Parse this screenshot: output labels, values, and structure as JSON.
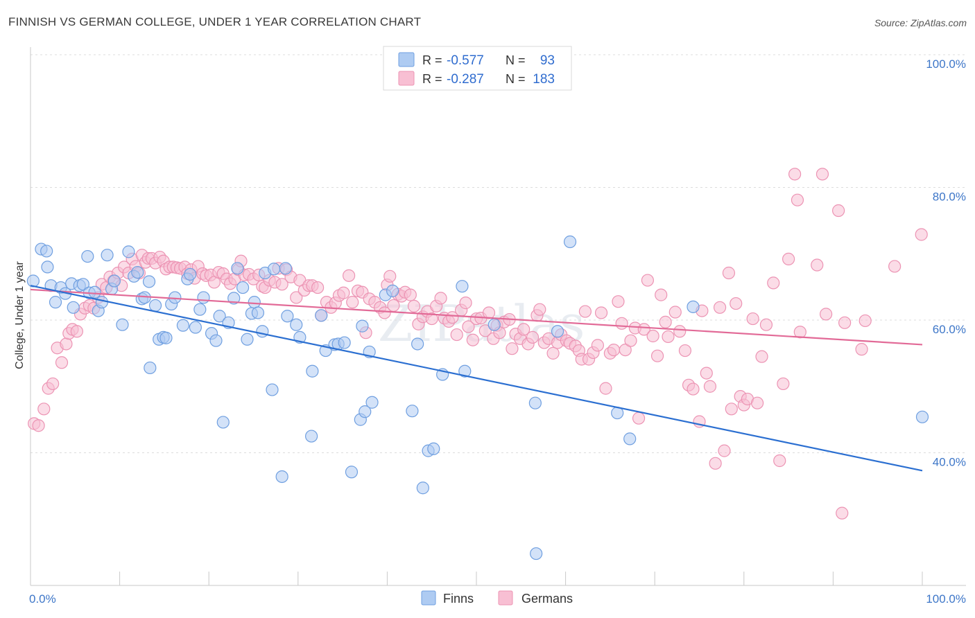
{
  "header": {
    "title": "FINNISH VS GERMAN COLLEGE, UNDER 1 YEAR CORRELATION CHART",
    "source": "Source: ZipAtlas.com"
  },
  "legend": {
    "finns": {
      "r_label": "R =",
      "r_value": "-0.577",
      "n_label": "N =",
      "n_value": "93"
    },
    "germans": {
      "r_label": "R =",
      "r_value": "-0.287",
      "n_label": "N =",
      "n_value": "183"
    }
  },
  "bottom_legend": {
    "finns": "Finns",
    "germans": "Germans"
  },
  "watermark": "ZIPatlas",
  "colors": {
    "finns_fill": "#aecbf2",
    "finns_stroke": "#6f9fe0",
    "finns_line": "#2b6fd1",
    "germans_fill": "#f8bfd3",
    "germans_stroke": "#ec93b3",
    "germans_line": "#e26a97",
    "grid": "#dcdcdc",
    "axis_label": "#3d76c8"
  },
  "chart_data": {
    "type": "scatter",
    "title": "FINNISH VS GERMAN COLLEGE, UNDER 1 YEAR CORRELATION CHART",
    "xlabel": "",
    "ylabel": "College, Under 1 year",
    "xlim": [
      0,
      100
    ],
    "ylim": [
      20,
      100
    ],
    "x_tick_labels": [
      "0.0%",
      "100.0%"
    ],
    "y_ticks": [
      40,
      60,
      80,
      100
    ],
    "y_tick_labels": [
      "40.0%",
      "60.0%",
      "80.0%",
      "100.0%"
    ],
    "grid": true,
    "legend_position": "top-center",
    "series": [
      {
        "name": "Finns",
        "r": -0.577,
        "n": 93,
        "trend": {
          "x": [
            0,
            100
          ],
          "y": [
            65.2,
            37.3
          ]
        },
        "points": [
          [
            0.3,
            65.9
          ],
          [
            1.2,
            70.7
          ],
          [
            1.8,
            70.4
          ],
          [
            1.9,
            68.0
          ],
          [
            2.3,
            65.2
          ],
          [
            2.8,
            62.7
          ],
          [
            3.4,
            64.9
          ],
          [
            3.9,
            64.0
          ],
          [
            4.6,
            65.5
          ],
          [
            4.8,
            61.9
          ],
          [
            5.5,
            65.2
          ],
          [
            5.9,
            65.4
          ],
          [
            6.4,
            69.6
          ],
          [
            6.6,
            64.1
          ],
          [
            7.2,
            64.2
          ],
          [
            7.6,
            61.4
          ],
          [
            8.0,
            62.7
          ],
          [
            8.6,
            69.8
          ],
          [
            9.1,
            64.7
          ],
          [
            9.4,
            65.9
          ],
          [
            10.3,
            59.3
          ],
          [
            11.0,
            70.3
          ],
          [
            11.6,
            66.6
          ],
          [
            12.0,
            67.2
          ],
          [
            12.5,
            63.2
          ],
          [
            12.8,
            63.4
          ],
          [
            13.3,
            65.8
          ],
          [
            13.4,
            52.8
          ],
          [
            14.0,
            62.2
          ],
          [
            14.4,
            57.1
          ],
          [
            14.9,
            57.4
          ],
          [
            15.2,
            57.3
          ],
          [
            15.8,
            62.4
          ],
          [
            16.2,
            63.4
          ],
          [
            17.1,
            59.2
          ],
          [
            17.6,
            66.2
          ],
          [
            17.9,
            66.9
          ],
          [
            18.5,
            58.9
          ],
          [
            19.0,
            61.6
          ],
          [
            19.4,
            63.4
          ],
          [
            20.3,
            58.0
          ],
          [
            20.8,
            56.9
          ],
          [
            21.2,
            60.6
          ],
          [
            21.6,
            44.6
          ],
          [
            22.2,
            59.6
          ],
          [
            22.8,
            63.3
          ],
          [
            23.2,
            67.8
          ],
          [
            23.8,
            64.9
          ],
          [
            24.3,
            57.1
          ],
          [
            24.8,
            61.0
          ],
          [
            25.1,
            62.7
          ],
          [
            25.5,
            61.1
          ],
          [
            26.0,
            58.3
          ],
          [
            26.3,
            67.1
          ],
          [
            27.1,
            49.5
          ],
          [
            27.3,
            67.7
          ],
          [
            28.2,
            36.4
          ],
          [
            28.6,
            67.8
          ],
          [
            28.8,
            60.6
          ],
          [
            29.8,
            59.3
          ],
          [
            30.2,
            57.4
          ],
          [
            31.5,
            42.5
          ],
          [
            31.6,
            52.3
          ],
          [
            32.6,
            60.7
          ],
          [
            33.1,
            55.4
          ],
          [
            34.1,
            56.3
          ],
          [
            34.5,
            56.4
          ],
          [
            35.2,
            56.6
          ],
          [
            36.0,
            37.1
          ],
          [
            37.0,
            45.0
          ],
          [
            37.2,
            59.1
          ],
          [
            37.5,
            46.2
          ],
          [
            38.0,
            55.2
          ],
          [
            38.3,
            47.6
          ],
          [
            39.8,
            63.8
          ],
          [
            40.6,
            64.4
          ],
          [
            42.8,
            46.3
          ],
          [
            43.4,
            56.4
          ],
          [
            44.0,
            34.7
          ],
          [
            44.6,
            40.3
          ],
          [
            45.2,
            40.6
          ],
          [
            46.2,
            51.8
          ],
          [
            48.4,
            65.1
          ],
          [
            48.7,
            52.3
          ],
          [
            52.0,
            59.3
          ],
          [
            56.6,
            47.5
          ],
          [
            56.7,
            24.8
          ],
          [
            59.1,
            58.3
          ],
          [
            60.5,
            71.8
          ],
          [
            65.8,
            46.0
          ],
          [
            67.2,
            42.1
          ],
          [
            74.3,
            62.0
          ],
          [
            100.0,
            45.4
          ]
        ]
      },
      {
        "name": "Germans",
        "r": -0.287,
        "n": 183,
        "trend": {
          "x": [
            0,
            100
          ],
          "y": [
            64.6,
            56.3
          ]
        },
        "points": [
          [
            0.4,
            44.4
          ],
          [
            0.9,
            44.1
          ],
          [
            1.5,
            46.6
          ],
          [
            2.0,
            49.7
          ],
          [
            2.5,
            50.4
          ],
          [
            3.0,
            55.8
          ],
          [
            3.5,
            53.6
          ],
          [
            4.0,
            56.4
          ],
          [
            4.3,
            58.0
          ],
          [
            4.7,
            58.6
          ],
          [
            5.2,
            58.3
          ],
          [
            5.6,
            60.9
          ],
          [
            6.1,
            61.8
          ],
          [
            6.6,
            62.2
          ],
          [
            7.1,
            61.8
          ],
          [
            7.6,
            63.4
          ],
          [
            8.0,
            65.4
          ],
          [
            8.5,
            64.9
          ],
          [
            8.9,
            66.5
          ],
          [
            9.3,
            65.9
          ],
          [
            9.8,
            67.1
          ],
          [
            10.2,
            65.2
          ],
          [
            10.5,
            68.0
          ],
          [
            11.0,
            67.1
          ],
          [
            11.4,
            69.2
          ],
          [
            11.8,
            68.1
          ],
          [
            12.2,
            67.1
          ],
          [
            12.5,
            69.8
          ],
          [
            12.9,
            68.7
          ],
          [
            13.2,
            69.3
          ],
          [
            13.6,
            69.3
          ],
          [
            14.0,
            68.6
          ],
          [
            14.5,
            69.5
          ],
          [
            14.9,
            68.9
          ],
          [
            15.2,
            67.7
          ],
          [
            15.6,
            68.0
          ],
          [
            16.0,
            68.0
          ],
          [
            16.4,
            67.9
          ],
          [
            16.8,
            67.8
          ],
          [
            17.3,
            68.0
          ],
          [
            17.6,
            67.0
          ],
          [
            18.0,
            67.6
          ],
          [
            18.4,
            66.3
          ],
          [
            18.8,
            68.1
          ],
          [
            19.3,
            67.0
          ],
          [
            19.7,
            66.7
          ],
          [
            20.2,
            66.8
          ],
          [
            20.6,
            65.7
          ],
          [
            21.1,
            67.2
          ],
          [
            21.6,
            67.0
          ],
          [
            22.0,
            66.2
          ],
          [
            22.4,
            65.5
          ],
          [
            22.9,
            66.2
          ],
          [
            23.3,
            67.6
          ],
          [
            23.6,
            68.9
          ],
          [
            24.0,
            66.8
          ],
          [
            24.5,
            66.9
          ],
          [
            25.0,
            66.2
          ],
          [
            25.6,
            66.8
          ],
          [
            26.0,
            65.1
          ],
          [
            26.3,
            64.9
          ],
          [
            26.8,
            66.0
          ],
          [
            27.4,
            65.7
          ],
          [
            27.8,
            67.8
          ],
          [
            28.2,
            65.4
          ],
          [
            28.7,
            67.6
          ],
          [
            29.2,
            66.5
          ],
          [
            29.8,
            63.4
          ],
          [
            30.2,
            66.0
          ],
          [
            30.7,
            64.5
          ],
          [
            31.2,
            65.2
          ],
          [
            31.6,
            65.2
          ],
          [
            32.2,
            64.9
          ],
          [
            32.6,
            60.7
          ],
          [
            33.2,
            62.7
          ],
          [
            33.7,
            61.9
          ],
          [
            34.2,
            62.6
          ],
          [
            34.6,
            63.7
          ],
          [
            35.1,
            64.1
          ],
          [
            35.7,
            66.7
          ],
          [
            36.1,
            62.7
          ],
          [
            36.7,
            64.4
          ],
          [
            37.2,
            64.2
          ],
          [
            37.6,
            58.1
          ],
          [
            38.0,
            63.2
          ],
          [
            38.6,
            62.7
          ],
          [
            39.2,
            61.9
          ],
          [
            39.7,
            61.1
          ],
          [
            40.0,
            65.3
          ],
          [
            40.3,
            66.6
          ],
          [
            40.7,
            62.2
          ],
          [
            41.2,
            63.9
          ],
          [
            41.6,
            63.6
          ],
          [
            42.0,
            64.2
          ],
          [
            42.6,
            63.8
          ],
          [
            43.0,
            62.1
          ],
          [
            43.5,
            59.4
          ],
          [
            44.0,
            60.5
          ],
          [
            44.5,
            61.3
          ],
          [
            45.0,
            60.2
          ],
          [
            45.5,
            62.1
          ],
          [
            46.0,
            63.3
          ],
          [
            46.4,
            60.3
          ],
          [
            46.9,
            59.8
          ],
          [
            47.3,
            60.4
          ],
          [
            47.8,
            57.8
          ],
          [
            48.3,
            61.5
          ],
          [
            48.8,
            62.6
          ],
          [
            49.1,
            59.0
          ],
          [
            49.6,
            57.0
          ],
          [
            50.0,
            60.2
          ],
          [
            50.5,
            60.3
          ],
          [
            51.0,
            58.4
          ],
          [
            51.4,
            61.1
          ],
          [
            51.9,
            57.2
          ],
          [
            52.3,
            59.2
          ],
          [
            52.6,
            58.1
          ],
          [
            53.1,
            59.7
          ],
          [
            53.7,
            60.1
          ],
          [
            54.0,
            55.7
          ],
          [
            54.4,
            57.9
          ],
          [
            54.9,
            57.2
          ],
          [
            55.3,
            58.6
          ],
          [
            55.8,
            56.4
          ],
          [
            56.3,
            57.4
          ],
          [
            56.8,
            60.7
          ],
          [
            57.1,
            61.6
          ],
          [
            57.6,
            56.6
          ],
          [
            58.1,
            57.2
          ],
          [
            58.6,
            55.0
          ],
          [
            59.1,
            56.6
          ],
          [
            59.5,
            57.8
          ],
          [
            60.1,
            56.9
          ],
          [
            60.5,
            56.5
          ],
          [
            61.1,
            56.1
          ],
          [
            61.5,
            55.4
          ],
          [
            61.8,
            54.1
          ],
          [
            62.2,
            61.3
          ],
          [
            62.6,
            54.1
          ],
          [
            63.1,
            55.1
          ],
          [
            63.6,
            56.2
          ],
          [
            64.0,
            61.1
          ],
          [
            64.5,
            49.7
          ],
          [
            65.0,
            55.0
          ],
          [
            65.4,
            55.5
          ],
          [
            65.9,
            62.8
          ],
          [
            66.3,
            59.5
          ],
          [
            66.7,
            55.5
          ],
          [
            67.3,
            56.9
          ],
          [
            67.8,
            58.8
          ],
          [
            68.2,
            45.2
          ],
          [
            68.8,
            58.6
          ],
          [
            69.2,
            66.0
          ],
          [
            69.8,
            57.6
          ],
          [
            70.3,
            54.6
          ],
          [
            70.7,
            63.8
          ],
          [
            71.2,
            59.7
          ],
          [
            71.5,
            57.5
          ],
          [
            72.3,
            61.2
          ],
          [
            72.8,
            58.3
          ],
          [
            73.4,
            55.4
          ],
          [
            73.8,
            50.2
          ],
          [
            74.3,
            49.6
          ],
          [
            75.0,
            44.7
          ],
          [
            75.3,
            61.4
          ],
          [
            75.8,
            52.0
          ],
          [
            76.2,
            50.0
          ],
          [
            76.8,
            38.4
          ],
          [
            77.3,
            61.9
          ],
          [
            77.8,
            40.3
          ],
          [
            78.3,
            67.1
          ],
          [
            78.6,
            46.6
          ],
          [
            79.1,
            62.5
          ],
          [
            79.6,
            48.5
          ],
          [
            80.0,
            47.2
          ],
          [
            80.4,
            48.1
          ],
          [
            81.0,
            60.2
          ],
          [
            81.5,
            47.5
          ],
          [
            82.0,
            54.5
          ],
          [
            82.5,
            59.3
          ],
          [
            83.3,
            65.6
          ],
          [
            84.0,
            38.8
          ],
          [
            84.4,
            50.4
          ],
          [
            85.0,
            69.2
          ],
          [
            85.7,
            82.0
          ],
          [
            86.0,
            78.1
          ],
          [
            86.3,
            58.2
          ],
          [
            88.2,
            68.3
          ],
          [
            88.8,
            82.0
          ],
          [
            89.2,
            60.9
          ],
          [
            90.6,
            76.5
          ],
          [
            91.0,
            30.9
          ],
          [
            91.3,
            59.6
          ],
          [
            93.2,
            55.6
          ],
          [
            93.6,
            59.9
          ],
          [
            96.9,
            68.1
          ],
          [
            99.9,
            72.9
          ]
        ]
      }
    ]
  }
}
